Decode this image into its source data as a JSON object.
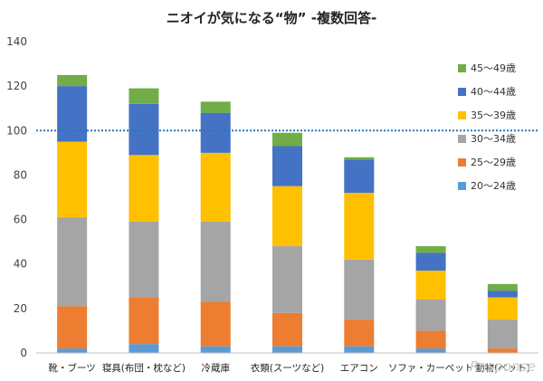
{
  "chart_data": {
    "type": "bar",
    "stacked": true,
    "title": "ニオイが気になる“物” -複数回答-",
    "categories": [
      "靴・ブーツ",
      "寝具(布団・枕など)",
      "冷蔵庫",
      "衣類(スーツなど)",
      "エアコン",
      "ソファ・カーペット",
      "動物(ペット)"
    ],
    "series": [
      {
        "name": "20～24歳",
        "color": "#5B9BD5",
        "values": [
          2,
          4,
          3,
          3,
          3,
          2,
          0
        ]
      },
      {
        "name": "25～29歳",
        "color": "#ED7D31",
        "values": [
          19,
          21,
          20,
          15,
          12,
          8,
          2
        ]
      },
      {
        "name": "30～34歳",
        "color": "#A5A5A5",
        "values": [
          40,
          34,
          36,
          30,
          27,
          14,
          13
        ]
      },
      {
        "name": "35～39歳",
        "color": "#FFC000",
        "values": [
          34,
          30,
          31,
          27,
          30,
          13,
          10
        ]
      },
      {
        "name": "40～44歳",
        "color": "#4472C4",
        "values": [
          25,
          23,
          18,
          18,
          15,
          8,
          3
        ]
      },
      {
        "name": "45～49歳",
        "color": "#70AD47",
        "values": [
          5,
          7,
          5,
          6,
          1,
          3,
          3
        ]
      }
    ],
    "ylim": [
      0,
      140
    ],
    "yticks": [
      0,
      20,
      40,
      60,
      80,
      100,
      120,
      140
    ],
    "reference_line": {
      "value": 100,
      "color": "#2E75B6",
      "style": "dotted"
    },
    "legend_position": "right",
    "grid": false
  },
  "watermark": "Response"
}
